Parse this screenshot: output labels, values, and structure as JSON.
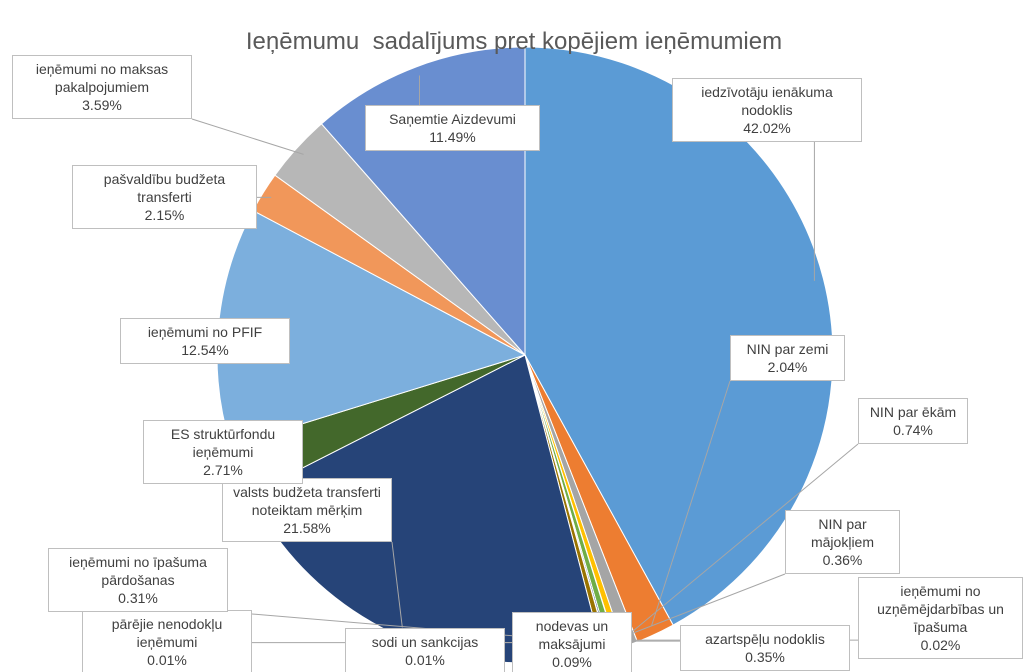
{
  "chart_data": {
    "type": "pie",
    "title": "Ieņēmumu  sadalījums pret kopējiem ieņēmumiem",
    "categories": [
      "iedzīvotāju ienākuma nodoklis",
      "NIN par zemi",
      "NIN par ēkām",
      "NIN par mājokļiem",
      "ieņēmumi no uzņēmējdarbības un īpašuma",
      "azartspēļu nodoklis",
      "nodevas un maksājumi",
      "sodi un sankcijas",
      "pārējie nenodokļu ieņēmumi",
      "ieņēmumi no īpašuma pārdošanas",
      "valsts budžeta transferti noteiktam mērķim",
      "ES struktūrfondu ieņēmumi",
      "ieņēmumi no PFIF",
      "pašvaldību budžeta transferti",
      "ieņēmumi no maksas pakalpojumiem",
      "Saņemtie  Aizdevumi"
    ],
    "values": [
      42.02,
      2.04,
      0.74,
      0.36,
      0.02,
      0.35,
      0.09,
      0.01,
      0.01,
      0.31,
      21.58,
      2.71,
      12.54,
      2.15,
      3.59,
      11.49
    ],
    "value_labels": [
      "42.02%",
      "2.04%",
      "0.74%",
      "0.36%",
      "0.02%",
      "0.35%",
      "0.09%",
      "0.01%",
      "0.01%",
      "0.31%",
      "21.58%",
      "2.71%",
      "12.54%",
      "2.15%",
      "3.59%",
      "11.49%"
    ],
    "colors": [
      "#5b9bd5",
      "#ed7d31",
      "#a5a5a5",
      "#ffc000",
      "#4472c4",
      "#70ad47",
      "#264478",
      "#9e480e",
      "#636363",
      "#997300",
      "#264478",
      "#43682b",
      "#7cafdd",
      "#f1975a",
      "#b7b7b7",
      "#698ed0"
    ]
  }
}
